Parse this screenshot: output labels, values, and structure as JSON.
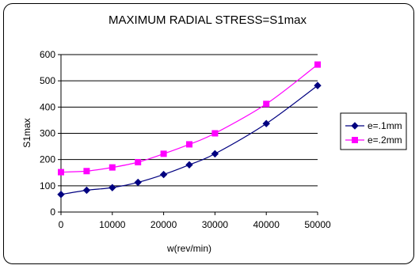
{
  "chart_data": {
    "type": "line",
    "title": "MAXIMUM RADIAL STRESS=S1max",
    "xlabel": "w(rev/min)",
    "ylabel": "S1max",
    "xlim": [
      0,
      50000
    ],
    "ylim": [
      0,
      600
    ],
    "xticks": [
      0,
      10000,
      20000,
      30000,
      40000,
      50000
    ],
    "yticks": [
      0,
      100,
      200,
      300,
      400,
      500,
      600
    ],
    "grid": "horizontal",
    "legend_position": "right",
    "series": [
      {
        "name": "e=.1mm",
        "color": "#000080",
        "marker": "diamond",
        "x": [
          0,
          5000,
          10000,
          15000,
          20000,
          25000,
          30000,
          40000,
          50000
        ],
        "y": [
          67,
          83,
          93,
          113,
          143,
          180,
          222,
          337,
          482
        ]
      },
      {
        "name": "e=.2mm",
        "color": "#ff00ff",
        "marker": "square",
        "x": [
          0,
          5000,
          10000,
          15000,
          20000,
          25000,
          30000,
          40000,
          50000
        ],
        "y": [
          152,
          156,
          170,
          190,
          222,
          258,
          300,
          412,
          562
        ]
      }
    ]
  }
}
